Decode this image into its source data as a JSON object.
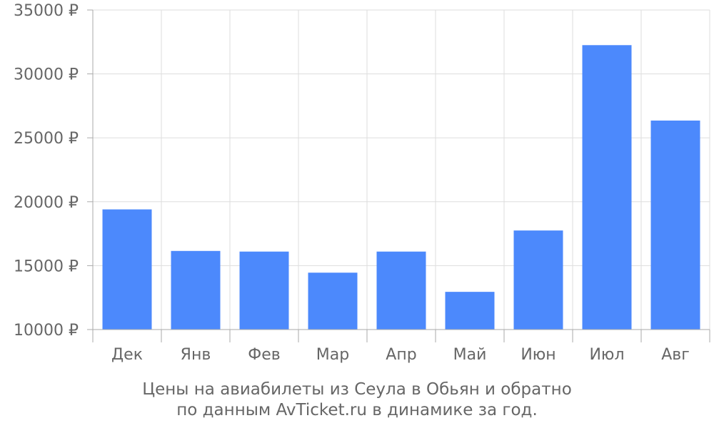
{
  "chart_data": {
    "type": "bar",
    "categories": [
      "Дек",
      "Янв",
      "Фев",
      "Мар",
      "Апр",
      "Май",
      "Июн",
      "Июл",
      "Авг"
    ],
    "values": [
      19400,
      16150,
      16100,
      14450,
      16100,
      12950,
      17750,
      32250,
      26350
    ],
    "ylim": [
      10000,
      35000
    ],
    "yticks": [
      10000,
      15000,
      20000,
      25000,
      30000,
      35000
    ],
    "ytick_labels": [
      "10000 ₽",
      "15000 ₽",
      "20000 ₽",
      "25000 ₽",
      "30000 ₽",
      "35000 ₽"
    ],
    "grid": true,
    "bar_color": "#4c89fc",
    "grid_color": "#dddddd",
    "axis_color": "#aaaaaa",
    "text_color": "#666666"
  },
  "caption": {
    "line1": "Цены на авиабилеты из Сеула в Обьян и обратно",
    "line2": "по данным AvTicket.ru в динамике за год."
  }
}
